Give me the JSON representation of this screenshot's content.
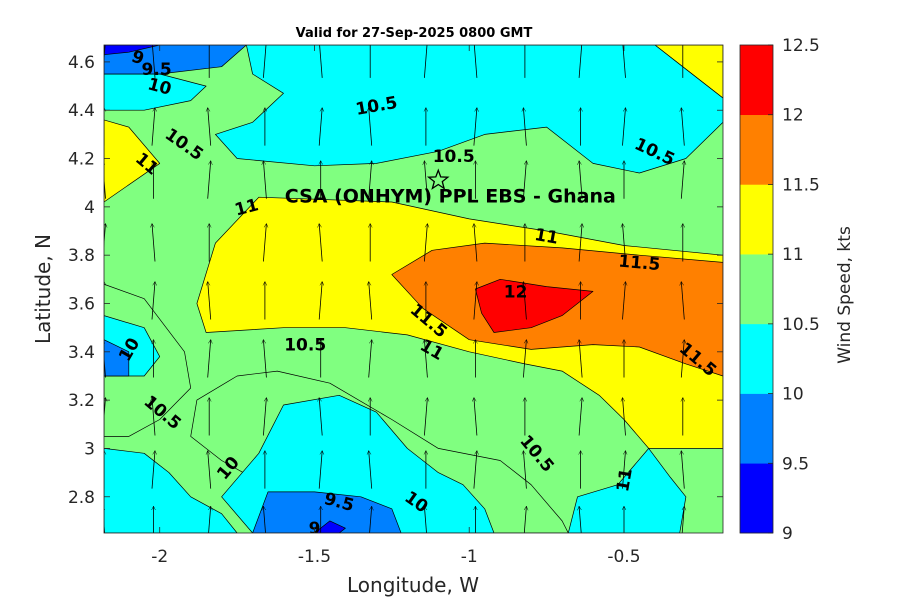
{
  "chart_data": {
    "type": "contour",
    "title": "Valid for 27-Sep-2025 0800 GMT",
    "xlabel": "Longitude, W",
    "ylabel": "Latitude, N",
    "xlim": [
      -2.18,
      -0.18
    ],
    "ylim": [
      2.65,
      4.67
    ],
    "x_ticks": [
      -2,
      -1.5,
      -1,
      -0.5
    ],
    "x_tick_labels": [
      "-2",
      "-1.5",
      "-1",
      "-0.5"
    ],
    "y_ticks": [
      2.8,
      3,
      3.2,
      3.4,
      3.6,
      3.8,
      4,
      4.2,
      4.4,
      4.6
    ],
    "y_tick_labels": [
      "2.8",
      "3",
      "3.2",
      "3.4",
      "3.6",
      "3.8",
      "4",
      "4.2",
      "4.4",
      "4.6"
    ],
    "colorbar": {
      "label": "Wind Speed, kts",
      "levels": [
        9,
        9.5,
        10,
        10.5,
        11,
        11.5,
        12,
        12.5
      ],
      "level_labels": [
        "9",
        "9.5",
        "10",
        "10.5",
        "11",
        "11.5",
        "12",
        "12.5"
      ],
      "colors": [
        "#0000ff",
        "#0080ff",
        "#00ffff",
        "#80ff80",
        "#ffff00",
        "#ff8000",
        "#ff0000"
      ]
    },
    "background_level": 10.5,
    "regions": [
      {
        "level": 11,
        "points": [
          [
            -1.68,
            4.04
          ],
          [
            -1.25,
            4.02
          ],
          [
            -1.0,
            3.95
          ],
          [
            -0.75,
            3.9
          ],
          [
            -0.5,
            3.84
          ],
          [
            -0.18,
            3.8
          ],
          [
            -0.18,
            3.0
          ],
          [
            -0.42,
            3.0
          ],
          [
            -0.5,
            3.12
          ],
          [
            -0.58,
            3.22
          ],
          [
            -0.7,
            3.32
          ],
          [
            -0.82,
            3.35
          ],
          [
            -1.0,
            3.4
          ],
          [
            -1.2,
            3.47
          ],
          [
            -1.4,
            3.5
          ],
          [
            -1.6,
            3.5
          ],
          [
            -1.85,
            3.48
          ],
          [
            -1.88,
            3.6
          ],
          [
            -1.82,
            3.85
          ]
        ]
      },
      {
        "level": 11,
        "points": [
          [
            -2.18,
            4.36
          ],
          [
            -2.1,
            4.33
          ],
          [
            -2.0,
            4.18
          ],
          [
            -2.18,
            4.02
          ]
        ]
      },
      {
        "level": 11,
        "points": [
          [
            -0.4,
            4.67
          ],
          [
            -0.18,
            4.67
          ],
          [
            -0.18,
            4.45
          ],
          [
            -0.3,
            4.57
          ]
        ]
      },
      {
        "level": 10.5,
        "points": [
          [
            -2.18,
            3.68
          ],
          [
            -2.05,
            3.62
          ],
          [
            -1.92,
            3.4
          ],
          [
            -1.9,
            3.25
          ],
          [
            -2.0,
            3.12
          ],
          [
            -2.1,
            3.05
          ],
          [
            -2.18,
            3.05
          ]
        ]
      },
      {
        "level": 10.5,
        "points": [
          [
            -1.62,
            3.32
          ],
          [
            -1.45,
            3.27
          ],
          [
            -1.25,
            3.12
          ],
          [
            -1.1,
            3.0
          ],
          [
            -0.9,
            2.95
          ],
          [
            -0.8,
            2.85
          ],
          [
            -0.7,
            2.7
          ],
          [
            -0.68,
            2.65
          ],
          [
            -1.65,
            2.65
          ],
          [
            -1.66,
            2.85
          ],
          [
            -1.8,
            2.95
          ],
          [
            -1.9,
            3.05
          ],
          [
            -1.88,
            3.2
          ],
          [
            -1.75,
            3.3
          ]
        ]
      },
      {
        "level": 11.5,
        "points": [
          [
            -1.25,
            3.72
          ],
          [
            -1.12,
            3.82
          ],
          [
            -0.95,
            3.85
          ],
          [
            -0.7,
            3.83
          ],
          [
            -0.45,
            3.8
          ],
          [
            -0.18,
            3.77
          ],
          [
            -0.18,
            3.3
          ],
          [
            -0.3,
            3.35
          ],
          [
            -0.45,
            3.42
          ],
          [
            -0.6,
            3.43
          ],
          [
            -0.8,
            3.41
          ],
          [
            -1.0,
            3.45
          ],
          [
            -1.15,
            3.58
          ]
        ]
      },
      {
        "level": 12,
        "points": [
          [
            -0.98,
            3.66
          ],
          [
            -0.9,
            3.7
          ],
          [
            -0.75,
            3.67
          ],
          [
            -0.6,
            3.65
          ],
          [
            -0.7,
            3.55
          ],
          [
            -0.8,
            3.5
          ],
          [
            -0.92,
            3.48
          ],
          [
            -0.96,
            3.56
          ]
        ]
      },
      {
        "level": 10,
        "points": [
          [
            -1.72,
            4.67
          ],
          [
            -0.4,
            4.67
          ],
          [
            -0.3,
            4.57
          ],
          [
            -0.18,
            4.45
          ],
          [
            -0.18,
            4.35
          ],
          [
            -0.3,
            4.2
          ],
          [
            -0.45,
            4.14
          ],
          [
            -0.6,
            4.18
          ],
          [
            -0.75,
            4.33
          ],
          [
            -0.95,
            4.3
          ],
          [
            -1.1,
            4.23
          ],
          [
            -1.3,
            4.18
          ],
          [
            -1.5,
            4.17
          ],
          [
            -1.75,
            4.2
          ],
          [
            -1.82,
            4.3
          ],
          [
            -1.7,
            4.35
          ],
          [
            -1.6,
            4.47
          ],
          [
            -1.7,
            4.55
          ]
        ]
      },
      {
        "level": 10,
        "points": [
          [
            -2.18,
            4.55
          ],
          [
            -2.0,
            4.55
          ],
          [
            -1.85,
            4.5
          ],
          [
            -1.9,
            4.44
          ],
          [
            -2.05,
            4.4
          ],
          [
            -2.18,
            4.4
          ]
        ]
      },
      {
        "level": 10,
        "points": [
          [
            -2.18,
            3.55
          ],
          [
            -2.05,
            3.5
          ],
          [
            -2.0,
            3.38
          ],
          [
            -2.05,
            3.3
          ],
          [
            -2.18,
            3.3
          ]
        ]
      },
      {
        "level": 10,
        "points": [
          [
            -2.18,
            3.0
          ],
          [
            -2.05,
            2.98
          ],
          [
            -1.97,
            2.9
          ],
          [
            -1.9,
            2.8
          ],
          [
            -1.8,
            2.73
          ],
          [
            -1.75,
            2.65
          ],
          [
            -2.18,
            2.65
          ]
        ]
      },
      {
        "level": 10,
        "points": [
          [
            -0.68,
            2.65
          ],
          [
            -0.65,
            2.8
          ],
          [
            -0.52,
            2.85
          ],
          [
            -0.42,
            3.0
          ],
          [
            -0.35,
            2.88
          ],
          [
            -0.3,
            2.8
          ],
          [
            -0.32,
            2.65
          ]
        ]
      },
      {
        "level": 10,
        "points": [
          [
            -1.42,
            3.22
          ],
          [
            -1.3,
            3.15
          ],
          [
            -1.2,
            3.0
          ],
          [
            -1.1,
            2.9
          ],
          [
            -1.02,
            2.85
          ],
          [
            -0.95,
            2.75
          ],
          [
            -0.92,
            2.65
          ],
          [
            -1.7,
            2.65
          ],
          [
            -1.8,
            2.8
          ],
          [
            -1.68,
            2.98
          ],
          [
            -1.6,
            3.18
          ]
        ]
      },
      {
        "level": 9.5,
        "points": [
          [
            -2.18,
            4.67
          ],
          [
            -1.72,
            4.67
          ],
          [
            -1.8,
            4.58
          ],
          [
            -2.0,
            4.55
          ],
          [
            -2.18,
            4.55
          ]
        ]
      },
      {
        "level": 9.5,
        "points": [
          [
            -2.18,
            3.45
          ],
          [
            -2.1,
            3.4
          ],
          [
            -2.1,
            3.3
          ],
          [
            -2.18,
            3.3
          ]
        ]
      },
      {
        "level": 9.5,
        "points": [
          [
            -1.65,
            2.82
          ],
          [
            -1.5,
            2.82
          ],
          [
            -1.35,
            2.8
          ],
          [
            -1.25,
            2.75
          ],
          [
            -1.22,
            2.65
          ],
          [
            -1.7,
            2.65
          ]
        ]
      },
      {
        "level": 9,
        "points": [
          [
            -2.18,
            4.67
          ],
          [
            -2.0,
            4.67
          ],
          [
            -2.1,
            4.64
          ],
          [
            -2.18,
            4.63
          ]
        ]
      },
      {
        "level": 9,
        "points": [
          [
            -1.45,
            2.7
          ],
          [
            -1.4,
            2.67
          ],
          [
            -1.42,
            2.65
          ],
          [
            -1.5,
            2.65
          ]
        ]
      }
    ],
    "contour_labels": [
      {
        "text": "9",
        "lon": -2.07,
        "lat": 4.62,
        "angle": 20
      },
      {
        "text": "9.5",
        "lon": -2.01,
        "lat": 4.57,
        "angle": 0
      },
      {
        "text": "10",
        "lon": -2.0,
        "lat": 4.5,
        "angle": 15
      },
      {
        "text": "10.5",
        "lon": -1.92,
        "lat": 4.26,
        "angle": 35
      },
      {
        "text": "11",
        "lon": -2.04,
        "lat": 4.18,
        "angle": 40
      },
      {
        "text": "10.5",
        "lon": -1.3,
        "lat": 4.42,
        "angle": -10
      },
      {
        "text": "10.5",
        "lon": -1.05,
        "lat": 4.21,
        "angle": 0
      },
      {
        "text": "10.5",
        "lon": -0.4,
        "lat": 4.23,
        "angle": 25
      },
      {
        "text": "11",
        "lon": -1.72,
        "lat": 4.0,
        "angle": -15
      },
      {
        "text": "11",
        "lon": -0.75,
        "lat": 3.88,
        "angle": 10
      },
      {
        "text": "11.5",
        "lon": -0.45,
        "lat": 3.77,
        "angle": 5
      },
      {
        "text": "12",
        "lon": -0.85,
        "lat": 3.65,
        "angle": 0
      },
      {
        "text": "11.5",
        "lon": -1.13,
        "lat": 3.53,
        "angle": 40
      },
      {
        "text": "11",
        "lon": -1.12,
        "lat": 3.41,
        "angle": 30
      },
      {
        "text": "10.5",
        "lon": -1.53,
        "lat": 3.43,
        "angle": 0
      },
      {
        "text": "11.5",
        "lon": -0.26,
        "lat": 3.37,
        "angle": 40
      },
      {
        "text": "10",
        "lon": -2.1,
        "lat": 3.41,
        "angle": -60
      },
      {
        "text": "10.5",
        "lon": -1.99,
        "lat": 3.15,
        "angle": 40
      },
      {
        "text": "10",
        "lon": -1.78,
        "lat": 2.92,
        "angle": -50
      },
      {
        "text": "10.5",
        "lon": -0.78,
        "lat": 2.98,
        "angle": 50
      },
      {
        "text": "11",
        "lon": -0.5,
        "lat": 2.87,
        "angle": -80
      },
      {
        "text": "9.5",
        "lon": -1.42,
        "lat": 2.78,
        "angle": 15
      },
      {
        "text": "10",
        "lon": -1.17,
        "lat": 2.78,
        "angle": 35
      },
      {
        "text": "9",
        "lon": -1.5,
        "lat": 2.67,
        "angle": 0
      }
    ],
    "wind_vector_lons": [
      -2.18,
      -2.02,
      -1.84,
      -1.66,
      -1.48,
      -1.32,
      -1.14,
      -0.98,
      -0.82,
      -0.64,
      -0.5,
      -0.31
    ],
    "wind_vector_lats": [
      2.67,
      2.9,
      3.12,
      3.36,
      3.6,
      3.84,
      4.1,
      4.32,
      4.6
    ],
    "wind_direction": "from south",
    "site": {
      "label": "CSA (ONHYM) PPL EBS  - Ghana",
      "lon": -1.1,
      "lat": 4.11,
      "marker": "star"
    }
  }
}
